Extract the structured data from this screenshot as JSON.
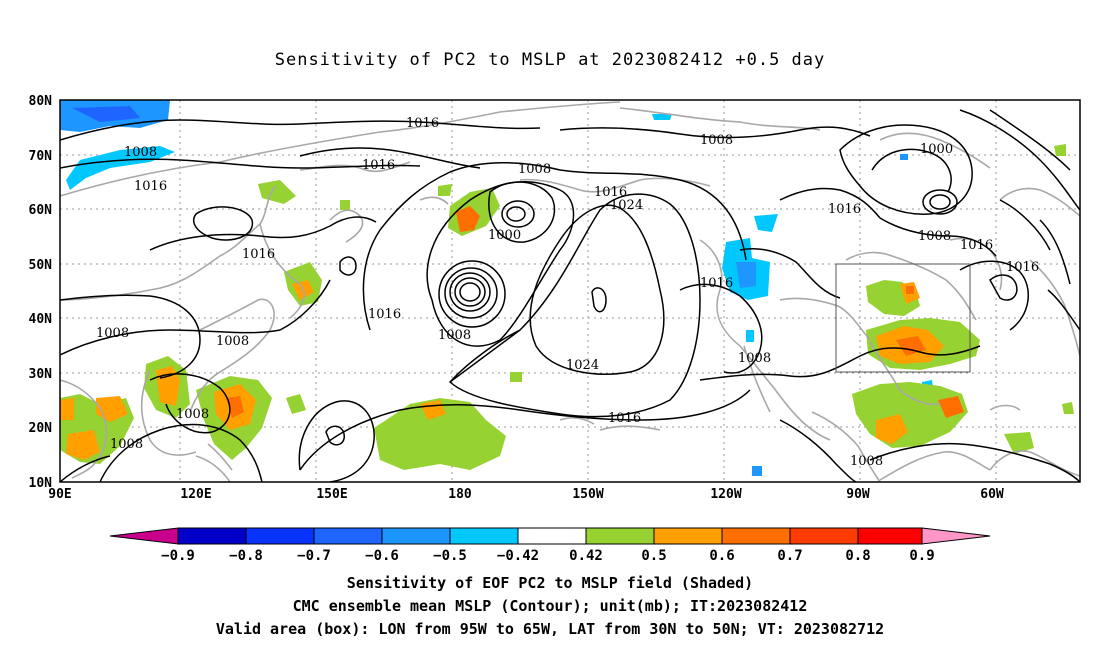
{
  "title": "Sensitivity of PC2 to MSLP at 2023082412 +0.5 day",
  "lat_labels": [
    "80N",
    "70N",
    "60N",
    "50N",
    "40N",
    "30N",
    "20N",
    "10N"
  ],
  "lon_labels": [
    "90E",
    "120E",
    "150E",
    "180",
    "150W",
    "120W",
    "90W",
    "60W"
  ],
  "contour_labels": [
    {
      "text": "1016"
    },
    {
      "text": "1008"
    },
    {
      "text": "1016"
    },
    {
      "text": "1016"
    },
    {
      "text": "1008"
    },
    {
      "text": "1000"
    },
    {
      "text": "1016"
    },
    {
      "text": "1024"
    },
    {
      "text": "1008"
    },
    {
      "text": "1000"
    },
    {
      "text": "1016"
    },
    {
      "text": "1008"
    },
    {
      "text": "1016"
    },
    {
      "text": "1016"
    },
    {
      "text": "1016"
    },
    {
      "text": "1016"
    },
    {
      "text": "1008"
    },
    {
      "text": "1008"
    },
    {
      "text": "1024"
    },
    {
      "text": "1016"
    },
    {
      "text": "1008"
    },
    {
      "text": "1008"
    },
    {
      "text": "1008"
    },
    {
      "text": "1008"
    },
    {
      "text": "1016"
    }
  ],
  "colorbar": {
    "labels": [
      "-0.9",
      "-0.8",
      "-0.7",
      "-0.6",
      "-0.5",
      "-0.42",
      "0.42",
      "0.5",
      "0.6",
      "0.7",
      "0.8",
      "0.9"
    ],
    "colors": [
      "#0000c8",
      "#0a32ff",
      "#1e64ff",
      "#1e96ff",
      "#00c8ff",
      "#ffffff",
      "#96d232",
      "#ffa000",
      "#ff6e00",
      "#ff3c00",
      "#ff0000"
    ],
    "low_tri_color": "#c8008c",
    "high_tri_color": "#ff96c8"
  },
  "captions": [
    "Sensitivity of EOF PC2 to MSLP field (Shaded)",
    "CMC ensemble mean MSLP (Contour); unit(mb); IT:2023082412",
    "Valid area (box): LON from 95W to 65W, LAT from 30N to 50N; VT: 2023082712"
  ]
}
